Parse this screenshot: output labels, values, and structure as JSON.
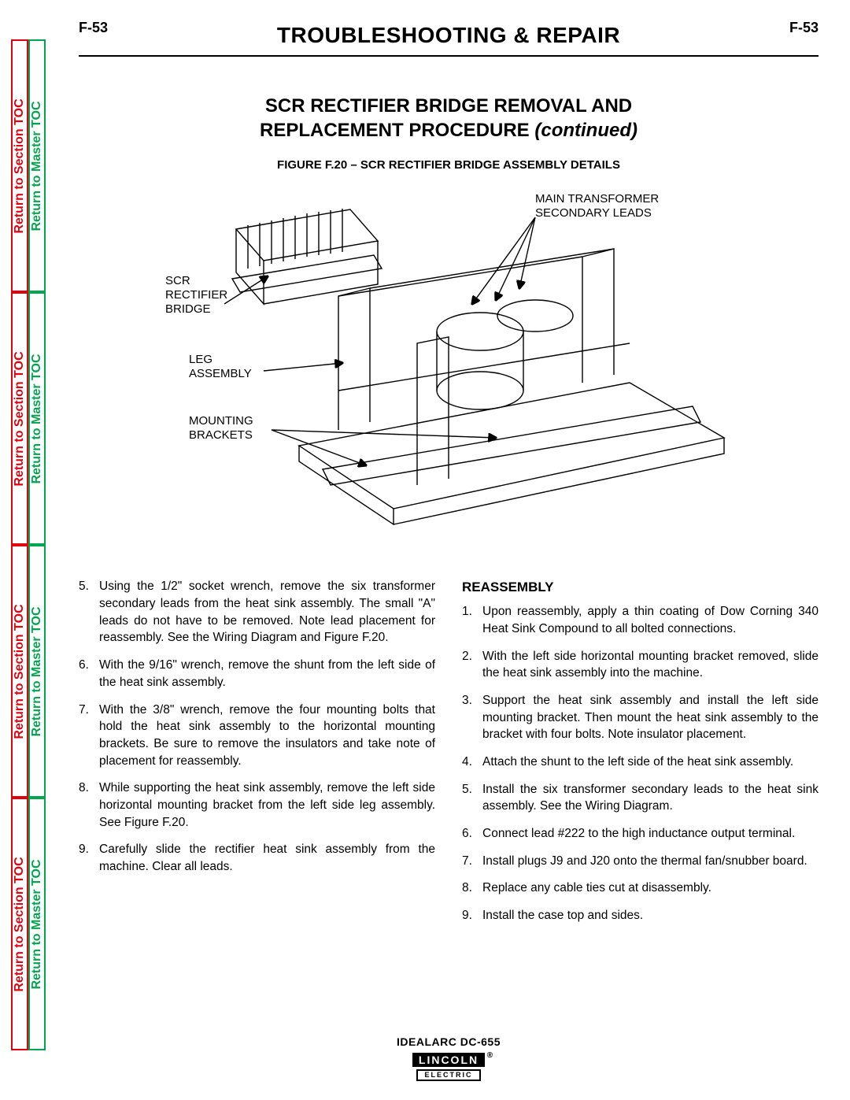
{
  "sideTabs": {
    "section": "Return to Section TOC",
    "master": "Return to Master TOC",
    "sectionColor": "#E3000F",
    "masterColor": "#00A64F"
  },
  "header": {
    "pageNumber": "F-53",
    "title": "TROUBLESHOOTING & REPAIR"
  },
  "subtitle": {
    "line1": "SCR RECTIFIER BRIDGE REMOVAL AND",
    "line2a": "REPLACEMENT PROCEDURE ",
    "line2b": "(continued)"
  },
  "figure": {
    "caption": "FIGURE F.20 – SCR RECTIFIER BRIDGE ASSEMBLY DETAILS",
    "callouts": {
      "mainXfmr1": "MAIN TRANSFORMER",
      "mainXfmr2": "SECONDARY LEADS",
      "scr1": "SCR",
      "scr2": "RECTIFIER",
      "scr3": "BRIDGE",
      "leg1": "LEG",
      "leg2": "ASSEMBLY",
      "mount1": "MOUNTING",
      "mount2": "BRACKETS"
    }
  },
  "leftSteps": [
    {
      "n": "5.",
      "t": "Using the 1/2\" socket wrench, remove the six transformer secondary leads from the heat sink assembly.  The small \"A\" leads do not have to be removed.  Note lead placement for reassembly.  See the Wiring Diagram and Figure F.20."
    },
    {
      "n": "6.",
      "t": "With the 9/16\" wrench, remove the shunt from the left side of the heat sink assembly."
    },
    {
      "n": "7.",
      "t": "With the 3/8\" wrench, remove the four mounting bolts that hold the heat sink assembly to the horizontal mounting brackets.  Be sure to remove the insulators and take note of placement for reassembly."
    },
    {
      "n": "8.",
      "t": "While supporting the heat sink assembly, remove the left side horizontal mounting bracket from the left side leg assembly.  See Figure F.20."
    },
    {
      "n": "9.",
      "t": "Carefully slide the rectifier heat sink assembly from the machine.  Clear all leads."
    }
  ],
  "rightHeading": "REASSEMBLY",
  "rightSteps": [
    {
      "n": "1.",
      "t": "Upon reassembly, apply a thin coating of Dow Corning 340 Heat Sink Compound to all bolted connections."
    },
    {
      "n": "2.",
      "t": "With the left side horizontal mounting bracket removed, slide the heat sink assembly into the machine."
    },
    {
      "n": "3.",
      "t": "Support the heat sink assembly and install the left side mounting bracket.  Then mount the heat sink assembly to the bracket with four bolts.  Note insulator placement."
    },
    {
      "n": "4.",
      "t": "Attach the shunt to the left side of the heat sink assembly."
    },
    {
      "n": "5.",
      "t": "Install the six transformer secondary leads to the heat sink assembly.  See the Wiring Diagram."
    },
    {
      "n": "6.",
      "t": "Connect lead #222 to the high inductance output terminal."
    },
    {
      "n": "7.",
      "t": "Install plugs J9 and J20 onto the thermal fan/snubber board."
    },
    {
      "n": "8.",
      "t": "Replace any cable ties cut at disassembly."
    },
    {
      "n": "9.",
      "t": "Install the case top and sides."
    }
  ],
  "footer": {
    "model": "IDEALARC DC-655",
    "brand": "LINCOLN",
    "sub": "ELECTRIC"
  }
}
